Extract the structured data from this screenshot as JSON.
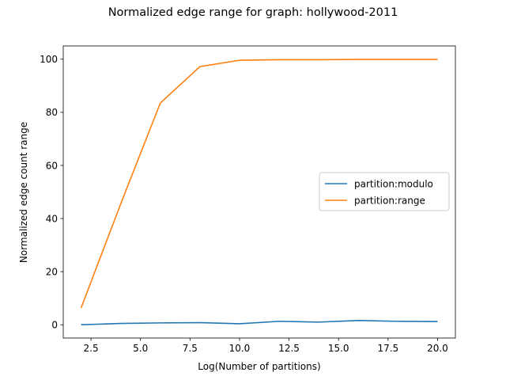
{
  "chart_data": {
    "type": "line",
    "title": "Normalized edge range for graph: hollywood-2011",
    "xlabel": "Log(Number of partitions)",
    "ylabel": "Normalized edge count range",
    "xlim": [
      1.1,
      20.9
    ],
    "ylim": [
      -5,
      105
    ],
    "xticks": [
      2.5,
      5.0,
      7.5,
      10.0,
      12.5,
      15.0,
      17.5,
      20.0
    ],
    "xtick_labels": [
      "2.5",
      "5.0",
      "7.5",
      "10.0",
      "12.5",
      "15.0",
      "17.5",
      "20.0"
    ],
    "yticks": [
      0,
      20,
      40,
      60,
      80,
      100
    ],
    "ytick_labels": [
      "0",
      "20",
      "40",
      "60",
      "80",
      "100"
    ],
    "grid": false,
    "legend_position": "center-right",
    "series": [
      {
        "name": "partition:modulo",
        "color": "#1f77b4",
        "x": [
          2,
          4,
          6,
          8,
          10,
          12,
          14,
          16,
          18,
          20
        ],
        "y": [
          0.0,
          0.5,
          0.7,
          0.8,
          0.4,
          1.3,
          1.0,
          1.6,
          1.3,
          1.2
        ]
      },
      {
        "name": "partition:range",
        "color": "#ff7f0e",
        "x": [
          2,
          4,
          6,
          8,
          10,
          12,
          14,
          16,
          18,
          20
        ],
        "y": [
          6.3,
          45.5,
          83.5,
          97.2,
          99.6,
          99.8,
          99.8,
          99.9,
          99.9,
          99.9
        ]
      }
    ]
  }
}
